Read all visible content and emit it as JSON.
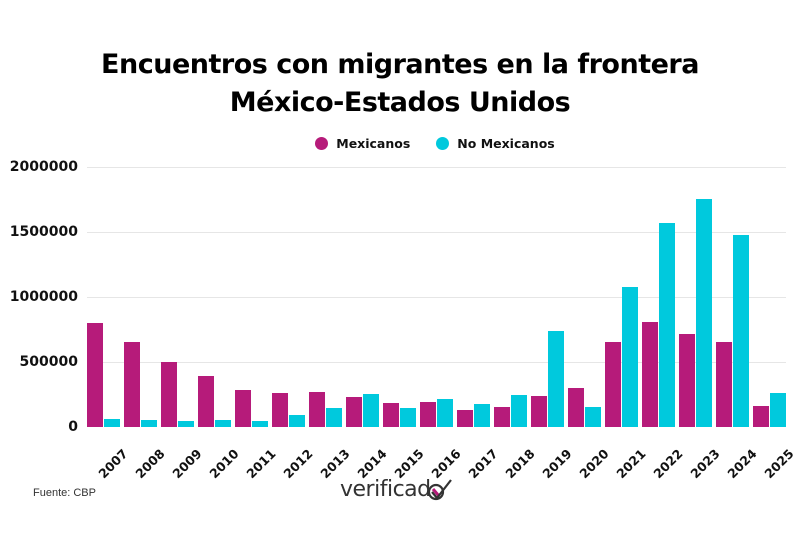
{
  "title": {
    "line1": "Encuentros con migrantes en la frontera",
    "line2": "México-Estados Unidos"
  },
  "legend": [
    {
      "label": "Mexicanos",
      "color": "#B61B7A"
    },
    {
      "label": "No Mexicanos",
      "color": "#00C9DD"
    }
  ],
  "source": "Fuente: CBP",
  "logo": {
    "text": "verificad",
    "mark": "o-check"
  },
  "chart_data": {
    "type": "bar",
    "title": "Encuentros con migrantes en la frontera México-Estados Unidos",
    "xlabel": "",
    "ylabel": "",
    "ylim": [
      0,
      2000000
    ],
    "yticks": [
      0,
      500000,
      1000000,
      1500000,
      2000000
    ],
    "ytick_labels": [
      "0",
      "500000",
      "1000000",
      "1500000",
      "2000000"
    ],
    "grid": true,
    "legend_position": "top-center",
    "categories": [
      "2007",
      "2008",
      "2009",
      "2010",
      "2011",
      "2012",
      "2013",
      "2014",
      "2015",
      "2016",
      "2017",
      "2018",
      "2019",
      "2020",
      "2021",
      "2022",
      "2023",
      "2024",
      "2025"
    ],
    "series": [
      {
        "name": "Mexicanos",
        "color": "#B61B7A",
        "values": [
          795000,
          649000,
          495000,
          393000,
          280000,
          262000,
          266000,
          226000,
          185000,
          190000,
          127000,
          152000,
          233000,
          294000,
          653000,
          803000,
          715000,
          649000,
          155000
        ]
      },
      {
        "name": "No Mexicanos",
        "color": "#00C9DD",
        "values": [
          56000,
          51000,
          43000,
          51000,
          46000,
          91000,
          145000,
          251000,
          142000,
          214000,
          173000,
          242000,
          737000,
          153000,
          1076000,
          1567000,
          1756000,
          1478000,
          256000
        ]
      }
    ]
  }
}
